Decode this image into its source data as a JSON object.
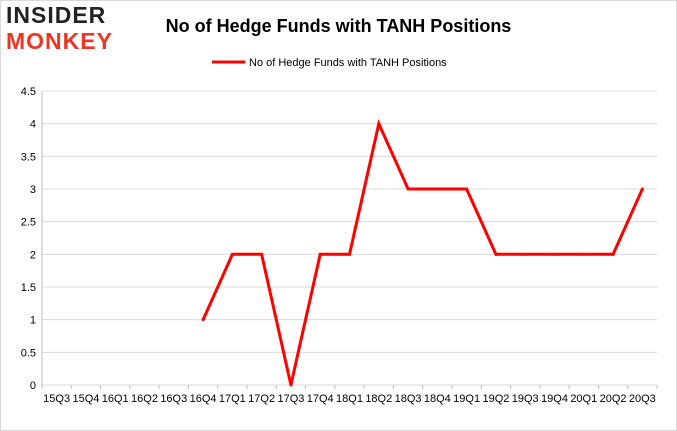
{
  "header": {
    "logo_line1": "INSIDER",
    "logo_line2": "MONKEY"
  },
  "colors": {
    "series": "#ff0000",
    "grid": "#d9d9d9",
    "logo_dark": "#222222",
    "logo_accent": "#ee3524"
  },
  "chart_data": {
    "type": "line",
    "title": "No of Hedge Funds with TANH Positions",
    "xlabel": "",
    "ylabel": "",
    "ylim": [
      0,
      4.5
    ],
    "y_ticks": [
      "0",
      "0.5",
      "1",
      "1.5",
      "2",
      "2.5",
      "3",
      "3.5",
      "4",
      "4.5"
    ],
    "grid": true,
    "legend_position": "top-center",
    "categories": [
      "15Q3",
      "15Q4",
      "16Q1",
      "16Q2",
      "16Q3",
      "16Q4",
      "17Q1",
      "17Q2",
      "17Q3",
      "17Q4",
      "18Q1",
      "18Q2",
      "18Q3",
      "18Q4",
      "19Q1",
      "19Q2",
      "19Q3",
      "19Q4",
      "20Q1",
      "20Q2",
      "20Q3"
    ],
    "series": [
      {
        "name": "No of Hedge Funds with TANH Positions",
        "values": [
          null,
          null,
          null,
          null,
          null,
          1,
          2,
          2,
          0,
          2,
          2,
          4,
          3,
          3,
          3,
          2,
          2,
          2,
          2,
          2,
          3
        ]
      }
    ]
  }
}
